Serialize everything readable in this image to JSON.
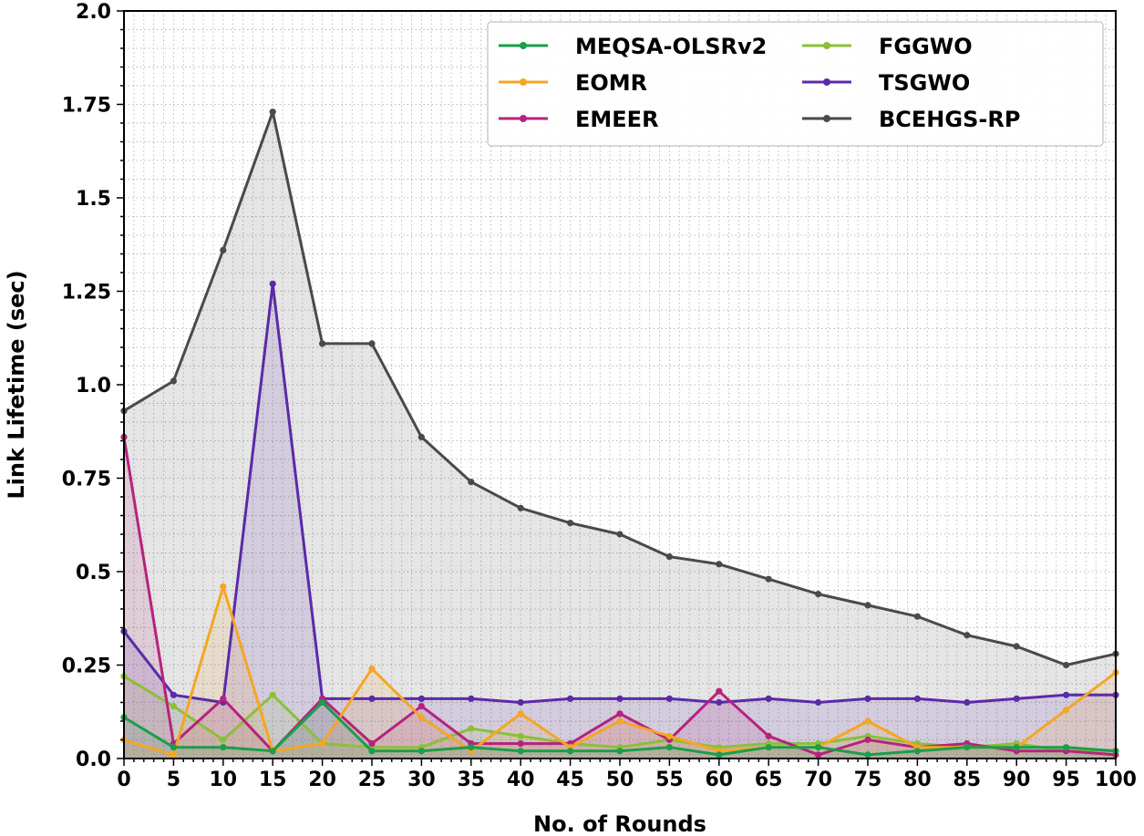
{
  "chart_data": {
    "type": "line",
    "title": "",
    "xlabel": "No. of Rounds",
    "ylabel": "Link Lifetime (sec)",
    "xlim": [
      0,
      100
    ],
    "ylim": [
      0,
      2.0
    ],
    "grid": true,
    "legend_position": "top-right",
    "x": [
      0,
      5,
      10,
      15,
      20,
      25,
      30,
      35,
      40,
      45,
      50,
      55,
      60,
      65,
      70,
      75,
      80,
      85,
      90,
      95,
      100
    ],
    "x_ticks": [
      "0",
      "5",
      "10",
      "15",
      "20",
      "25",
      "30",
      "35",
      "40",
      "45",
      "50",
      "55",
      "60",
      "65",
      "70",
      "75",
      "80",
      "85",
      "90",
      "95",
      "100"
    ],
    "y_ticks": [
      "0.0",
      "0.25",
      "0.5",
      "0.75",
      "1.0",
      "1.25",
      "1.5",
      "1.75",
      "2.0"
    ],
    "series": [
      {
        "name": "MEQSA-OLSRv2",
        "color": "#1a9e4a",
        "values": [
          0.11,
          0.03,
          0.03,
          0.02,
          0.15,
          0.02,
          0.02,
          0.03,
          0.02,
          0.02,
          0.02,
          0.03,
          0.01,
          0.03,
          0.03,
          0.01,
          0.02,
          0.03,
          0.03,
          0.03,
          0.02
        ]
      },
      {
        "name": "EOMR",
        "color": "#f5a623",
        "values": [
          0.05,
          0.01,
          0.46,
          0.02,
          0.04,
          0.24,
          0.11,
          0.02,
          0.12,
          0.03,
          0.1,
          0.06,
          0.02,
          0.03,
          0.03,
          0.1,
          0.03,
          0.03,
          0.03,
          0.13,
          0.23
        ]
      },
      {
        "name": "EMEER",
        "color": "#b5237e",
        "values": [
          0.86,
          0.04,
          0.16,
          0.02,
          0.16,
          0.04,
          0.14,
          0.04,
          0.04,
          0.04,
          0.12,
          0.05,
          0.18,
          0.06,
          0.01,
          0.05,
          0.03,
          0.04,
          0.02,
          0.02,
          0.01
        ]
      },
      {
        "name": "FGGWO",
        "color": "#8bbf3a",
        "values": [
          0.22,
          0.14,
          0.05,
          0.17,
          0.04,
          0.03,
          0.03,
          0.08,
          0.06,
          0.04,
          0.03,
          0.05,
          0.03,
          0.04,
          0.04,
          0.06,
          0.04,
          0.03,
          0.04,
          0.02,
          0.02
        ]
      },
      {
        "name": "TSGWO",
        "color": "#5b2aa8",
        "values": [
          0.34,
          0.17,
          0.15,
          1.27,
          0.16,
          0.16,
          0.16,
          0.16,
          0.15,
          0.16,
          0.16,
          0.16,
          0.15,
          0.16,
          0.15,
          0.16,
          0.16,
          0.15,
          0.16,
          0.17,
          0.17
        ]
      },
      {
        "name": "BCEHGS-RP",
        "color": "#4a4a4a",
        "values": [
          0.93,
          1.01,
          1.36,
          1.73,
          1.11,
          1.11,
          0.86,
          0.74,
          0.67,
          0.63,
          0.6,
          0.54,
          0.52,
          0.48,
          0.44,
          0.41,
          0.38,
          0.33,
          0.3,
          0.25,
          0.28
        ]
      }
    ]
  }
}
